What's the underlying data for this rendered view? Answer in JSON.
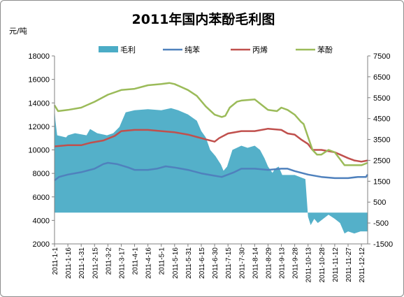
{
  "chart_data": {
    "type": "line",
    "title": "2011年国内苯酚毛利图",
    "ylabel_left": "元/吨",
    "left_axis": {
      "min": 2000,
      "max": 18000,
      "step": 2000,
      "ticks": [
        "2000",
        "4000",
        "6000",
        "8000",
        "10000",
        "12000",
        "14000",
        "16000",
        "18000"
      ]
    },
    "right_axis": {
      "min": -1500,
      "max": 7500,
      "step": 1000,
      "ticks": [
        "-1500",
        "-500",
        "500",
        "1500",
        "2500",
        "3500",
        "4500",
        "5500",
        "6500",
        "7500"
      ]
    },
    "x_ticks": [
      "2011-1-1",
      "2011-1-16",
      "2011-1-31",
      "2011-2-15",
      "2011-3-2",
      "2011-3-17",
      "2011-4-1",
      "2011-4-16",
      "2011-5-1",
      "2011-5-16",
      "2011-5-31",
      "2011-6-15",
      "2011-6-30",
      "2011-7-15",
      "2011-7-30",
      "2011-8-14",
      "2011-8-29",
      "2011-9-13",
      "2011-9-28",
      "2011-10-13",
      "2011-10-28",
      "2011-11-12",
      "2011-11-27",
      "2011-12-12"
    ],
    "legend_position": "top",
    "grid": false,
    "series": [
      {
        "name": "毛利",
        "kind": "area",
        "axis": "right",
        "color": "#4bacc6",
        "points": [
          [
            "2011-1-1",
            5000
          ],
          [
            "2011-1-2",
            4400
          ],
          [
            "2011-1-4",
            3700
          ],
          [
            "2011-1-14",
            3600
          ],
          [
            "2011-1-16",
            3700
          ],
          [
            "2011-1-24",
            3800
          ],
          [
            "2011-2-6",
            3700
          ],
          [
            "2011-2-10",
            4000
          ],
          [
            "2011-2-18",
            3800
          ],
          [
            "2011-3-1",
            3700
          ],
          [
            "2011-3-8",
            3800
          ],
          [
            "2011-3-15",
            4100
          ],
          [
            "2011-3-22",
            4800
          ],
          [
            "2011-4-1",
            4900
          ],
          [
            "2011-4-16",
            4950
          ],
          [
            "2011-5-1",
            4900
          ],
          [
            "2011-5-12",
            5000
          ],
          [
            "2011-5-20",
            4900
          ],
          [
            "2011-5-31",
            4700
          ],
          [
            "2011-6-10",
            4400
          ],
          [
            "2011-6-15",
            3900
          ],
          [
            "2011-6-20",
            3600
          ],
          [
            "2011-6-25",
            3000
          ],
          [
            "2011-7-1",
            2700
          ],
          [
            "2011-7-7",
            2300
          ],
          [
            "2011-7-10",
            2000
          ],
          [
            "2011-7-14",
            2200
          ],
          [
            "2011-7-20",
            3000
          ],
          [
            "2011-7-30",
            3200
          ],
          [
            "2011-8-6",
            3100
          ],
          [
            "2011-8-14",
            3200
          ],
          [
            "2011-8-20",
            3000
          ],
          [
            "2011-8-25",
            2600
          ],
          [
            "2011-8-29",
            2200
          ],
          [
            "2011-9-3",
            1900
          ],
          [
            "2011-9-6",
            2100
          ],
          [
            "2011-9-10",
            2200
          ],
          [
            "2011-9-14",
            1800
          ],
          [
            "2011-9-28",
            1800
          ],
          [
            "2011-10-10",
            1600
          ],
          [
            "2011-10-13",
            -200
          ],
          [
            "2011-10-16",
            -600
          ],
          [
            "2011-10-20",
            -300
          ],
          [
            "2011-10-24",
            -500
          ],
          [
            "2011-10-30",
            -300
          ],
          [
            "2011-11-5",
            -100
          ],
          [
            "2011-11-12",
            -300
          ],
          [
            "2011-11-18",
            -500
          ],
          [
            "2011-11-23",
            -1000
          ],
          [
            "2011-11-27",
            -900
          ],
          [
            "2011-12-4",
            -1000
          ],
          [
            "2011-12-11",
            -900
          ],
          [
            "2011-12-19",
            -900
          ]
        ]
      },
      {
        "name": "纯苯",
        "kind": "line",
        "axis": "left",
        "color": "#4f81bd",
        "points": [
          [
            "2011-1-1",
            7400
          ],
          [
            "2011-1-6",
            7700
          ],
          [
            "2011-1-16",
            7900
          ],
          [
            "2011-1-31",
            8100
          ],
          [
            "2011-2-15",
            8400
          ],
          [
            "2011-2-25",
            8800
          ],
          [
            "2011-3-2",
            8900
          ],
          [
            "2011-3-12",
            8800
          ],
          [
            "2011-3-25",
            8500
          ],
          [
            "2011-4-1",
            8300
          ],
          [
            "2011-4-16",
            8300
          ],
          [
            "2011-4-26",
            8400
          ],
          [
            "2011-5-6",
            8600
          ],
          [
            "2011-5-16",
            8500
          ],
          [
            "2011-5-31",
            8300
          ],
          [
            "2011-6-15",
            8000
          ],
          [
            "2011-6-30",
            7800
          ],
          [
            "2011-7-8",
            7700
          ],
          [
            "2011-7-15",
            7900
          ],
          [
            "2011-7-22",
            8100
          ],
          [
            "2011-7-30",
            8400
          ],
          [
            "2011-8-14",
            8400
          ],
          [
            "2011-8-29",
            8300
          ],
          [
            "2011-9-13",
            8400
          ],
          [
            "2011-9-20",
            8400
          ],
          [
            "2011-9-28",
            8200
          ],
          [
            "2011-10-13",
            7900
          ],
          [
            "2011-10-28",
            7700
          ],
          [
            "2011-11-12",
            7600
          ],
          [
            "2011-11-27",
            7600
          ],
          [
            "2011-12-8",
            7700
          ],
          [
            "2011-12-17",
            7700
          ],
          [
            "2011-12-19",
            7900
          ]
        ]
      },
      {
        "name": "丙烯",
        "kind": "line",
        "axis": "left",
        "color": "#c0504d",
        "points": [
          [
            "2011-1-1",
            10300
          ],
          [
            "2011-1-16",
            10400
          ],
          [
            "2011-1-31",
            10400
          ],
          [
            "2011-2-10",
            10600
          ],
          [
            "2011-2-25",
            10800
          ],
          [
            "2011-3-10",
            11200
          ],
          [
            "2011-3-17",
            11600
          ],
          [
            "2011-4-1",
            11700
          ],
          [
            "2011-4-16",
            11700
          ],
          [
            "2011-5-1",
            11600
          ],
          [
            "2011-5-16",
            11500
          ],
          [
            "2011-5-31",
            11300
          ],
          [
            "2011-6-10",
            11100
          ],
          [
            "2011-6-20",
            10900
          ],
          [
            "2011-6-30",
            10700
          ],
          [
            "2011-7-5",
            11000
          ],
          [
            "2011-7-15",
            11400
          ],
          [
            "2011-7-30",
            11600
          ],
          [
            "2011-8-14",
            11600
          ],
          [
            "2011-8-29",
            11800
          ],
          [
            "2011-9-13",
            11700
          ],
          [
            "2011-9-20",
            11400
          ],
          [
            "2011-9-28",
            11300
          ],
          [
            "2011-10-5",
            10900
          ],
          [
            "2011-10-13",
            10500
          ],
          [
            "2011-10-18",
            10000
          ],
          [
            "2011-10-28",
            10000
          ],
          [
            "2011-11-12",
            9800
          ],
          [
            "2011-11-18",
            9600
          ],
          [
            "2011-11-27",
            9300
          ],
          [
            "2011-12-4",
            9100
          ],
          [
            "2011-12-12",
            9000
          ],
          [
            "2011-12-19",
            9100
          ]
        ]
      },
      {
        "name": "苯酚",
        "kind": "line",
        "axis": "left",
        "color": "#9bbb59",
        "points": [
          [
            "2011-1-1",
            13800
          ],
          [
            "2011-1-5",
            13300
          ],
          [
            "2011-1-16",
            13400
          ],
          [
            "2011-1-31",
            13600
          ],
          [
            "2011-2-15",
            14100
          ],
          [
            "2011-3-2",
            14700
          ],
          [
            "2011-3-17",
            15100
          ],
          [
            "2011-4-1",
            15200
          ],
          [
            "2011-4-16",
            15500
          ],
          [
            "2011-5-1",
            15600
          ],
          [
            "2011-5-10",
            15700
          ],
          [
            "2011-5-16",
            15600
          ],
          [
            "2011-5-31",
            15100
          ],
          [
            "2011-6-10",
            14600
          ],
          [
            "2011-6-20",
            13700
          ],
          [
            "2011-6-30",
            13000
          ],
          [
            "2011-7-8",
            12800
          ],
          [
            "2011-7-12",
            12900
          ],
          [
            "2011-7-17",
            13600
          ],
          [
            "2011-7-25",
            14100
          ],
          [
            "2011-7-30",
            14200
          ],
          [
            "2011-8-14",
            14300
          ],
          [
            "2011-8-29",
            13400
          ],
          [
            "2011-9-8",
            13300
          ],
          [
            "2011-9-13",
            13600
          ],
          [
            "2011-9-20",
            13400
          ],
          [
            "2011-9-28",
            13000
          ],
          [
            "2011-10-5",
            12400
          ],
          [
            "2011-10-8",
            12200
          ],
          [
            "2011-10-13",
            11100
          ],
          [
            "2011-10-18",
            10000
          ],
          [
            "2011-10-23",
            9600
          ],
          [
            "2011-10-28",
            9600
          ],
          [
            "2011-11-5",
            10000
          ],
          [
            "2011-11-12",
            9800
          ],
          [
            "2011-11-18",
            9200
          ],
          [
            "2011-11-23",
            8700
          ],
          [
            "2011-11-27",
            8700
          ],
          [
            "2011-12-12",
            8700
          ],
          [
            "2011-12-19",
            8900
          ]
        ]
      }
    ]
  }
}
